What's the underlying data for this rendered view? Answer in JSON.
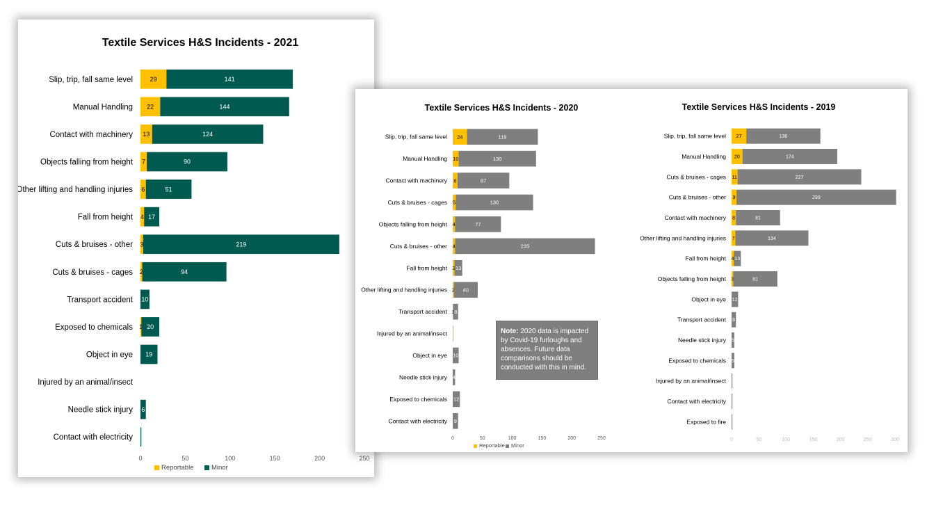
{
  "colors": {
    "reportable": "#ffc000",
    "minor_2021": "#005a50",
    "minor_gray": "#7f7f7f"
  },
  "note": {
    "label": "Note:",
    "text": " 2020 data is impacted by Covid-19 furloughs and absences. Future data comparisons should be conducted with this in mind."
  },
  "chart_data": [
    {
      "type": "bar",
      "orientation": "horizontal",
      "stacked": true,
      "title": "Textile Services H&S Incidents - 2021",
      "categories": [
        "Slip, trip, fall same level",
        "Manual Handling",
        "Contact with machinery",
        "Objects falling from height",
        "Other lifting and handling injuries",
        "Fall from height",
        "Cuts & bruises - other",
        "Cuts & bruises - cages",
        "Transport accident",
        "Exposed to chemicals",
        "Object in eye",
        "Injured by an animal/insect",
        "Needle stick injury",
        "Contact with electricity"
      ],
      "series": [
        {
          "name": "Reportable",
          "values": [
            29,
            22,
            13,
            7,
            6,
            4,
            3,
            2,
            0,
            1,
            0,
            0,
            0,
            0
          ],
          "labels": [
            "29",
            "22",
            "13",
            "7",
            "6",
            "4",
            "3",
            "2",
            "",
            "1",
            "",
            "",
            "",
            ""
          ]
        },
        {
          "name": "Minor",
          "values": [
            141,
            144,
            124,
            90,
            51,
            17,
            219,
            94,
            10,
            20,
            19,
            0,
            6,
            1
          ],
          "labels": [
            "141",
            "144",
            "124",
            "90",
            "51",
            "17",
            "219",
            "94",
            "10",
            "20",
            "19",
            "",
            "6",
            ""
          ]
        }
      ],
      "xlim": [
        0,
        250
      ],
      "xticks": [
        "0",
        "50",
        "100",
        "150",
        "200",
        "250"
      ],
      "legend": "bottom"
    },
    {
      "type": "bar",
      "orientation": "horizontal",
      "stacked": true,
      "title": "Textile Services H&S Incidents - 2020",
      "categories": [
        "Slip, trip, fall same level",
        "Manual Handling",
        "Contact with machinery",
        "Cuts & bruises - cages",
        "Objects falling from height",
        "Cuts & bruises - other",
        "Fall from height",
        "Other lifting and handling injuries",
        "Transport accident",
        "Injured by an animal/insect",
        "Object in eye",
        "Needle stick injury",
        "Exposed to chemicals",
        "Contact with electricity"
      ],
      "series": [
        {
          "name": "Reportable",
          "values": [
            24,
            10,
            8,
            5,
            4,
            4,
            3,
            2,
            1,
            1,
            0,
            0,
            0,
            0
          ],
          "labels": [
            "24",
            "10",
            "8",
            "5",
            "4",
            "4",
            "3",
            "2",
            "1",
            "",
            "",
            "",
            "",
            ""
          ]
        },
        {
          "name": "Minor",
          "values": [
            119,
            130,
            87,
            130,
            77,
            235,
            13,
            40,
            8,
            0,
            10,
            4,
            12,
            9
          ],
          "labels": [
            "119",
            "130",
            "87",
            "130",
            "77",
            "235",
            "13",
            "40",
            "8",
            "",
            "10",
            "4",
            "12",
            "9"
          ]
        }
      ],
      "xlim": [
        0,
        250
      ],
      "xticks": [
        "0",
        "50",
        "100",
        "150",
        "200",
        "250"
      ],
      "legend": "bottom"
    },
    {
      "type": "bar",
      "orientation": "horizontal",
      "stacked": true,
      "title": "Textile Services H&S Incidents - 2019",
      "categories": [
        "Slip, trip, fall same level",
        "Manual Handling",
        "Cuts & bruises - cages",
        "Cuts & bruises - other",
        "Contact with machinery",
        "Other lifting and handling injuries",
        "Fall from height",
        "Objects falling from height",
        "Object in eye",
        "Transport accident",
        "Needle stick injury",
        "Exposed to chemicals",
        "Injured by an animal/insect",
        "Contact with electricity",
        "Exposed to fire"
      ],
      "series": [
        {
          "name": "Reportable",
          "values": [
            27,
            20,
            11,
            9,
            8,
            7,
            4,
            3,
            0,
            0,
            0,
            0,
            0,
            0,
            0
          ],
          "labels": [
            "27",
            "20",
            "11",
            "9",
            "8",
            "7",
            "4",
            "3",
            "",
            "",
            "",
            "",
            "",
            "",
            ""
          ]
        },
        {
          "name": "Minor",
          "values": [
            136,
            174,
            227,
            293,
            81,
            134,
            13,
            81,
            12,
            8,
            5,
            5,
            1,
            1,
            1
          ],
          "labels": [
            "136",
            "174",
            "227",
            "293",
            "81",
            "134",
            "13",
            "81",
            "12",
            "8",
            "5",
            "5",
            "",
            "",
            ""
          ]
        }
      ],
      "xlim": [
        0,
        300
      ],
      "xticks": [
        "0",
        "50",
        "100",
        "150",
        "200",
        "250",
        "300"
      ],
      "legend": "none"
    }
  ]
}
